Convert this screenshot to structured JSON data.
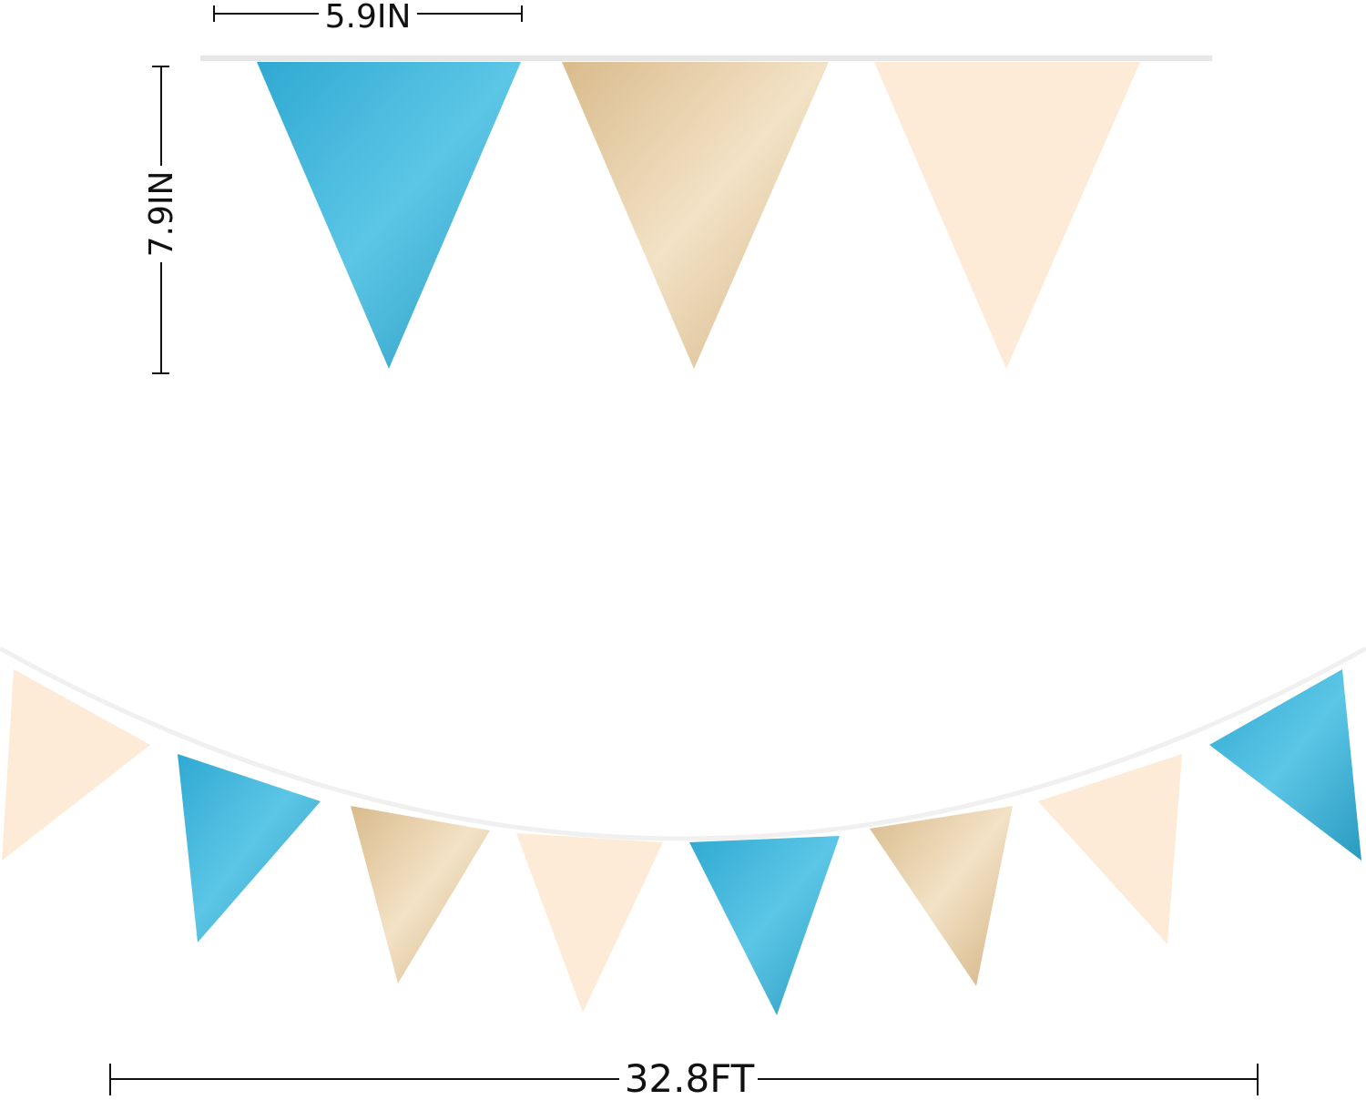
{
  "dimensions": {
    "flag_width": "5.9IN",
    "flag_height": "7.9IN",
    "total_length": "32.8FT"
  },
  "colors": {
    "blue": "#3bb3d8",
    "gold": "#e2c79e",
    "cream": "#fdebd7",
    "string": "#e6e6e6",
    "dimension_line": "#111111"
  },
  "top_flags": [
    "blue",
    "gold",
    "cream"
  ],
  "bottom_flags": [
    "cream",
    "blue",
    "gold",
    "cream",
    "blue",
    "gold",
    "cream",
    "blue"
  ]
}
